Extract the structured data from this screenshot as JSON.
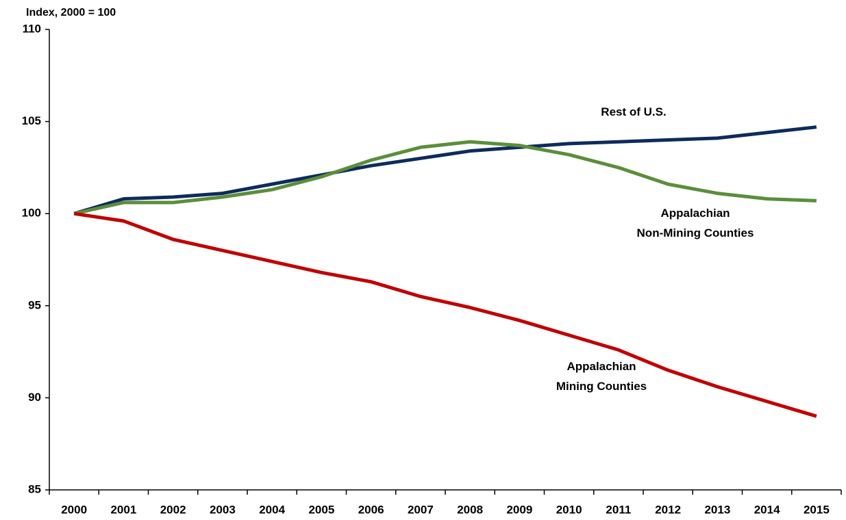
{
  "chart_data": {
    "type": "line",
    "y_axis_label": "Index, 2000 = 100",
    "categories": [
      "2000",
      "2001",
      "2002",
      "2003",
      "2004",
      "2005",
      "2006",
      "2007",
      "2008",
      "2009",
      "2010",
      "2011",
      "2012",
      "2013",
      "2014",
      "2015"
    ],
    "series": [
      {
        "name": [
          "Rest of U.S."
        ],
        "color": "#0e2b5c",
        "values": [
          100,
          100.8,
          100.9,
          101.1,
          101.6,
          102.1,
          102.6,
          103.0,
          103.4,
          103.6,
          103.8,
          103.9,
          104.0,
          104.1,
          104.4,
          104.7
        ]
      },
      {
        "name": [
          "Appalachian",
          "Non-Mining Counties"
        ],
        "color": "#5b8e3b",
        "values": [
          100,
          100.6,
          100.6,
          100.9,
          101.3,
          102.0,
          102.9,
          103.6,
          103.9,
          103.7,
          103.2,
          102.5,
          101.6,
          101.1,
          100.8,
          100.7
        ]
      },
      {
        "name": [
          "Appalachian",
          "Mining Counties"
        ],
        "color": "#c00000",
        "values": [
          100,
          99.6,
          98.6,
          98.0,
          97.4,
          96.8,
          96.3,
          95.5,
          94.9,
          94.2,
          93.4,
          92.6,
          91.5,
          90.6,
          89.8,
          89.0
        ]
      }
    ],
    "ylim": [
      85,
      110
    ],
    "yticks": [
      85,
      90,
      95,
      100,
      105,
      110
    ],
    "grid": false
  }
}
